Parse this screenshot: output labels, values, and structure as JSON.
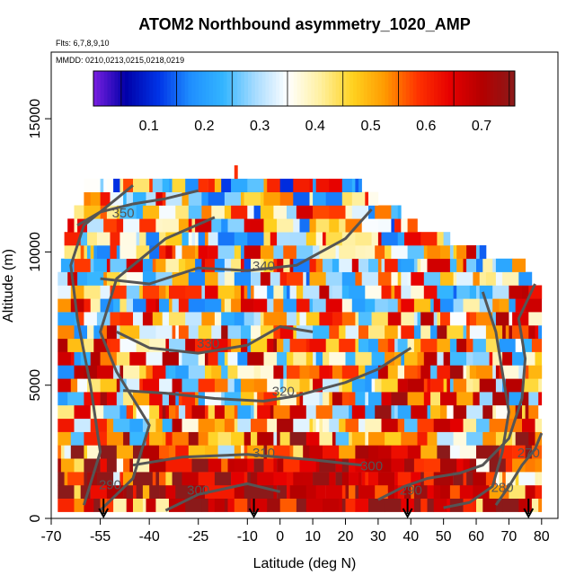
{
  "chart_data": {
    "type": "heatmap",
    "title": "ATOM2 Northbound asymmetry_1020_AMP",
    "flights_note": "Flts: 6,7,8,9,10",
    "dates_note": "MMDD: 0210,0213,0215,0218,0219",
    "xlabel": "Latitude (deg N)",
    "ylabel": "Altitude (m)",
    "xlim": [
      -70,
      85
    ],
    "ylim": [
      0,
      17500
    ],
    "x_ticks": [
      "-70",
      "-55",
      "-40",
      "-25",
      "-10",
      "0",
      "10",
      "20",
      "30",
      "40",
      "50",
      "60",
      "70",
      "80"
    ],
    "x_tick_values": [
      -70,
      -55,
      -40,
      -25,
      -10,
      0,
      10,
      20,
      30,
      40,
      50,
      60,
      70,
      80
    ],
    "y_ticks": [
      "0",
      "5000",
      "10000",
      "15000"
    ],
    "y_tick_values": [
      0,
      5000,
      10000,
      15000
    ],
    "colorbar": {
      "range": [
        0.0,
        0.76
      ],
      "ticks": [
        "0.1",
        "0.2",
        "0.3",
        "0.4",
        "0.5",
        "0.6",
        "0.7"
      ],
      "tick_values": [
        0.1,
        0.2,
        0.3,
        0.4,
        0.5,
        0.6,
        0.7
      ],
      "colors": [
        "#7a1fe0",
        "#0000a8",
        "#0033e6",
        "#1f8fff",
        "#33b5ff",
        "#a8dcff",
        "#ffffff",
        "#fff0a0",
        "#ffd21f",
        "#ff9900",
        "#ff3300",
        "#e60000",
        "#b30000",
        "#8b1a1a"
      ]
    },
    "field_layers": [
      {
        "alt": 500,
        "lat_min": -68,
        "lat_max": 80,
        "base": 0.6
      },
      {
        "alt": 1000,
        "lat_min": -68,
        "lat_max": 80,
        "base": 0.62
      },
      {
        "alt": 1500,
        "lat_min": -68,
        "lat_max": 80,
        "base": 0.6
      },
      {
        "alt": 2000,
        "lat_min": -68,
        "lat_max": 80,
        "base": 0.58
      },
      {
        "alt": 2500,
        "lat_min": -68,
        "lat_max": 80,
        "base": 0.55
      },
      {
        "alt": 3000,
        "lat_min": -68,
        "lat_max": 80,
        "base": 0.5
      },
      {
        "alt": 3500,
        "lat_min": -68,
        "lat_max": 80,
        "base": 0.48
      },
      {
        "alt": 4000,
        "lat_min": -68,
        "lat_max": 80,
        "base": 0.47
      },
      {
        "alt": 4500,
        "lat_min": -68,
        "lat_max": 80,
        "base": 0.46
      },
      {
        "alt": 5000,
        "lat_min": -68,
        "lat_max": 80,
        "base": 0.46
      },
      {
        "alt": 5500,
        "lat_min": -68,
        "lat_max": 80,
        "base": 0.45
      },
      {
        "alt": 6000,
        "lat_min": -68,
        "lat_max": 80,
        "base": 0.45
      },
      {
        "alt": 6500,
        "lat_min": -68,
        "lat_max": 80,
        "base": 0.45
      },
      {
        "alt": 7000,
        "lat_min": -68,
        "lat_max": 80,
        "base": 0.45
      },
      {
        "alt": 7500,
        "lat_min": -68,
        "lat_max": 80,
        "base": 0.44
      },
      {
        "alt": 8000,
        "lat_min": -68,
        "lat_max": 80,
        "base": 0.43
      },
      {
        "alt": 8500,
        "lat_min": -68,
        "lat_max": 80,
        "base": 0.42
      },
      {
        "alt": 9000,
        "lat_min": -68,
        "lat_max": 77,
        "base": 0.42
      },
      {
        "alt": 9500,
        "lat_min": -67,
        "lat_max": 75,
        "base": 0.41
      },
      {
        "alt": 10000,
        "lat_min": -66,
        "lat_max": 63,
        "base": 0.41
      },
      {
        "alt": 10500,
        "lat_min": -66,
        "lat_max": 52,
        "base": 0.4
      },
      {
        "alt": 11000,
        "lat_min": -65,
        "lat_max": 42,
        "base": 0.4
      },
      {
        "alt": 11500,
        "lat_min": -63,
        "lat_max": 37,
        "base": 0.4
      },
      {
        "alt": 12000,
        "lat_min": -60,
        "lat_max": 30,
        "base": 0.39
      },
      {
        "alt": 12500,
        "lat_min": -60,
        "lat_max": 25,
        "base": 0.38
      },
      {
        "alt": 13000,
        "lat_min": -14,
        "lat_max": -13,
        "base": 0.35
      }
    ],
    "contours": [
      {
        "label": "290",
        "label_at": [
          40,
          900
        ]
      },
      {
        "label": "300",
        "label_at": [
          -25,
          900
        ]
      },
      {
        "label": "300",
        "label_at": [
          28,
          1800
        ]
      },
      {
        "label": "310",
        "label_at": [
          -5,
          2300
        ]
      },
      {
        "label": "320",
        "label_at": [
          1,
          4600
        ]
      },
      {
        "label": "330",
        "label_at": [
          -22,
          6400
        ]
      },
      {
        "label": "340",
        "label_at": [
          -5,
          9300
        ]
      },
      {
        "label": "350",
        "label_at": [
          -48,
          11300
        ]
      },
      {
        "label": "270",
        "label_at": [
          76,
          2300
        ]
      },
      {
        "label": "280",
        "label_at": [
          68,
          1000
        ]
      },
      {
        "label": "290",
        "label_at": [
          -52,
          1100
        ]
      }
    ],
    "markers": {
      "type": "down-arrow",
      "x": [
        -54,
        -8,
        39,
        76
      ]
    }
  }
}
